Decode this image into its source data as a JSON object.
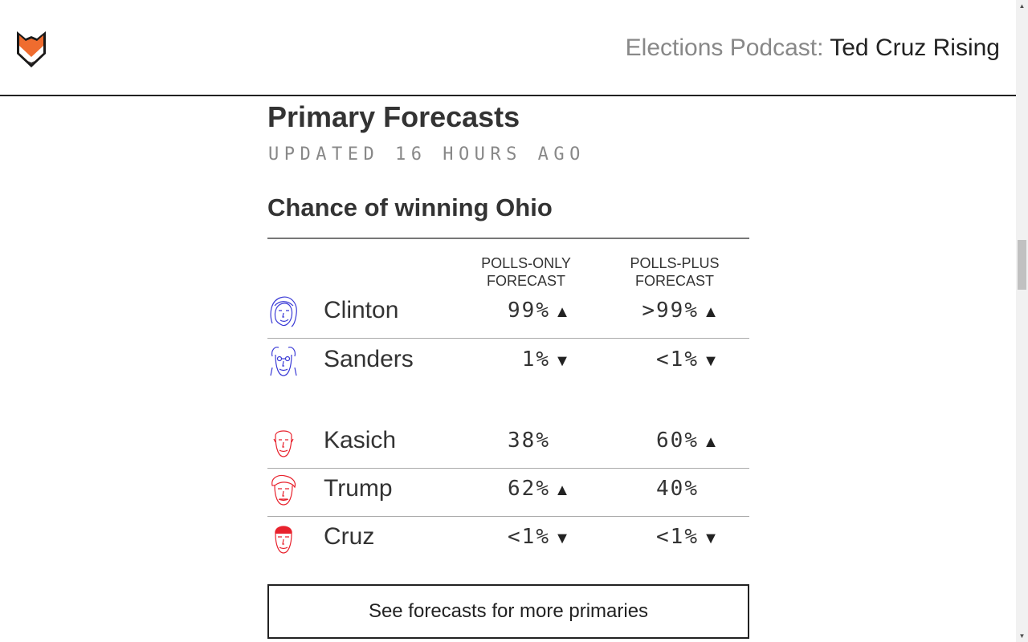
{
  "header": {
    "logo_icon": "fox-logo-icon",
    "podcast_prefix": "Elections Podcast:",
    "podcast_title": "Ted Cruz Rising"
  },
  "forecast": {
    "heading": "Primary Forecasts",
    "updated": "UPDATED 16 HOURS AGO",
    "state_heading": "Chance of winning Ohio",
    "columns": [
      "POLLS-ONLY FORECAST",
      "POLLS-PLUS FORECAST"
    ],
    "democrats": [
      {
        "name": "Clinton",
        "polls_only": "99%",
        "polls_only_trend": "▲",
        "polls_plus": ">99%",
        "polls_plus_trend": "▲"
      },
      {
        "name": "Sanders",
        "polls_only": "1%",
        "polls_only_trend": "▼",
        "polls_plus": "<1%",
        "polls_plus_trend": "▼"
      }
    ],
    "republicans": [
      {
        "name": "Kasich",
        "polls_only": "38%",
        "polls_only_trend": "",
        "polls_plus": "60%",
        "polls_plus_trend": "▲"
      },
      {
        "name": "Trump",
        "polls_only": "62%",
        "polls_only_trend": "▲",
        "polls_plus": "40%",
        "polls_plus_trend": ""
      },
      {
        "name": "Cruz",
        "polls_only": "<1%",
        "polls_only_trend": "▼",
        "polls_plus": "<1%",
        "polls_plus_trend": "▼"
      }
    ],
    "more_button": "See forecasts for more primaries"
  },
  "colors": {
    "democrat": "#3b3bd6",
    "republican": "#e8222d",
    "logo_orange": "#ef6c2f"
  }
}
